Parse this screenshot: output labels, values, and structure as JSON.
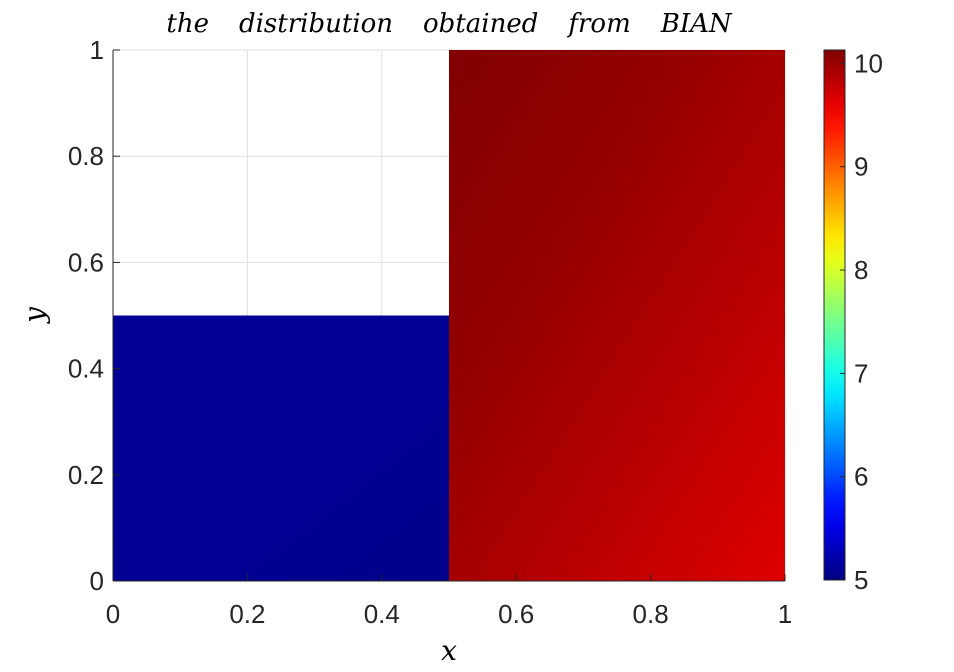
{
  "chart_data": {
    "type": "heatmap",
    "title": "the distribution obtained from BIAN",
    "title_words": [
      "the",
      "distribution",
      "obtained",
      "from",
      "BIAN"
    ],
    "xlabel": "x",
    "ylabel": "y",
    "xlim": [
      0,
      1
    ],
    "ylim": [
      0,
      1
    ],
    "x_ticks": [
      0,
      0.2,
      0.4,
      0.6,
      0.8,
      1
    ],
    "x_tick_labels": [
      "0",
      "0.2",
      "0.4",
      "0.6",
      "0.8",
      "1"
    ],
    "y_ticks": [
      0,
      0.2,
      0.4,
      0.6,
      0.8,
      1
    ],
    "y_tick_labels": [
      "0",
      "0.2",
      "0.4",
      "0.6",
      "0.8",
      "1"
    ],
    "grid": true,
    "colormap": "jet",
    "colorbar": {
      "placement": "right",
      "range": [
        5,
        10.13
      ],
      "ticks": [
        5,
        6,
        7,
        8,
        9,
        10
      ],
      "tick_labels": [
        "5",
        "6",
        "7",
        "8",
        "9",
        "10"
      ]
    },
    "regions": [
      {
        "name": "lower-left",
        "x_range": [
          0,
          0.5
        ],
        "y_range": [
          0,
          0.5
        ],
        "corner_values": {
          "x0y0": 5.02,
          "x1y0": 5.05,
          "x0y1": 5.12,
          "x1y1": 5.15
        }
      },
      {
        "name": "right",
        "x_range": [
          0.5,
          1
        ],
        "y_range": [
          0,
          1
        ],
        "corner_values": {
          "x0y0": 9.9,
          "x1y0": 9.65,
          "x0y1": 10.12,
          "x1y1": 9.95
        }
      }
    ],
    "empty_region": {
      "x_range": [
        0,
        0.5
      ],
      "y_range": [
        0.5,
        1
      ]
    }
  },
  "colors": {
    "axis": "#262626",
    "grid": "#e0e0e0",
    "background": "#ffffff"
  }
}
